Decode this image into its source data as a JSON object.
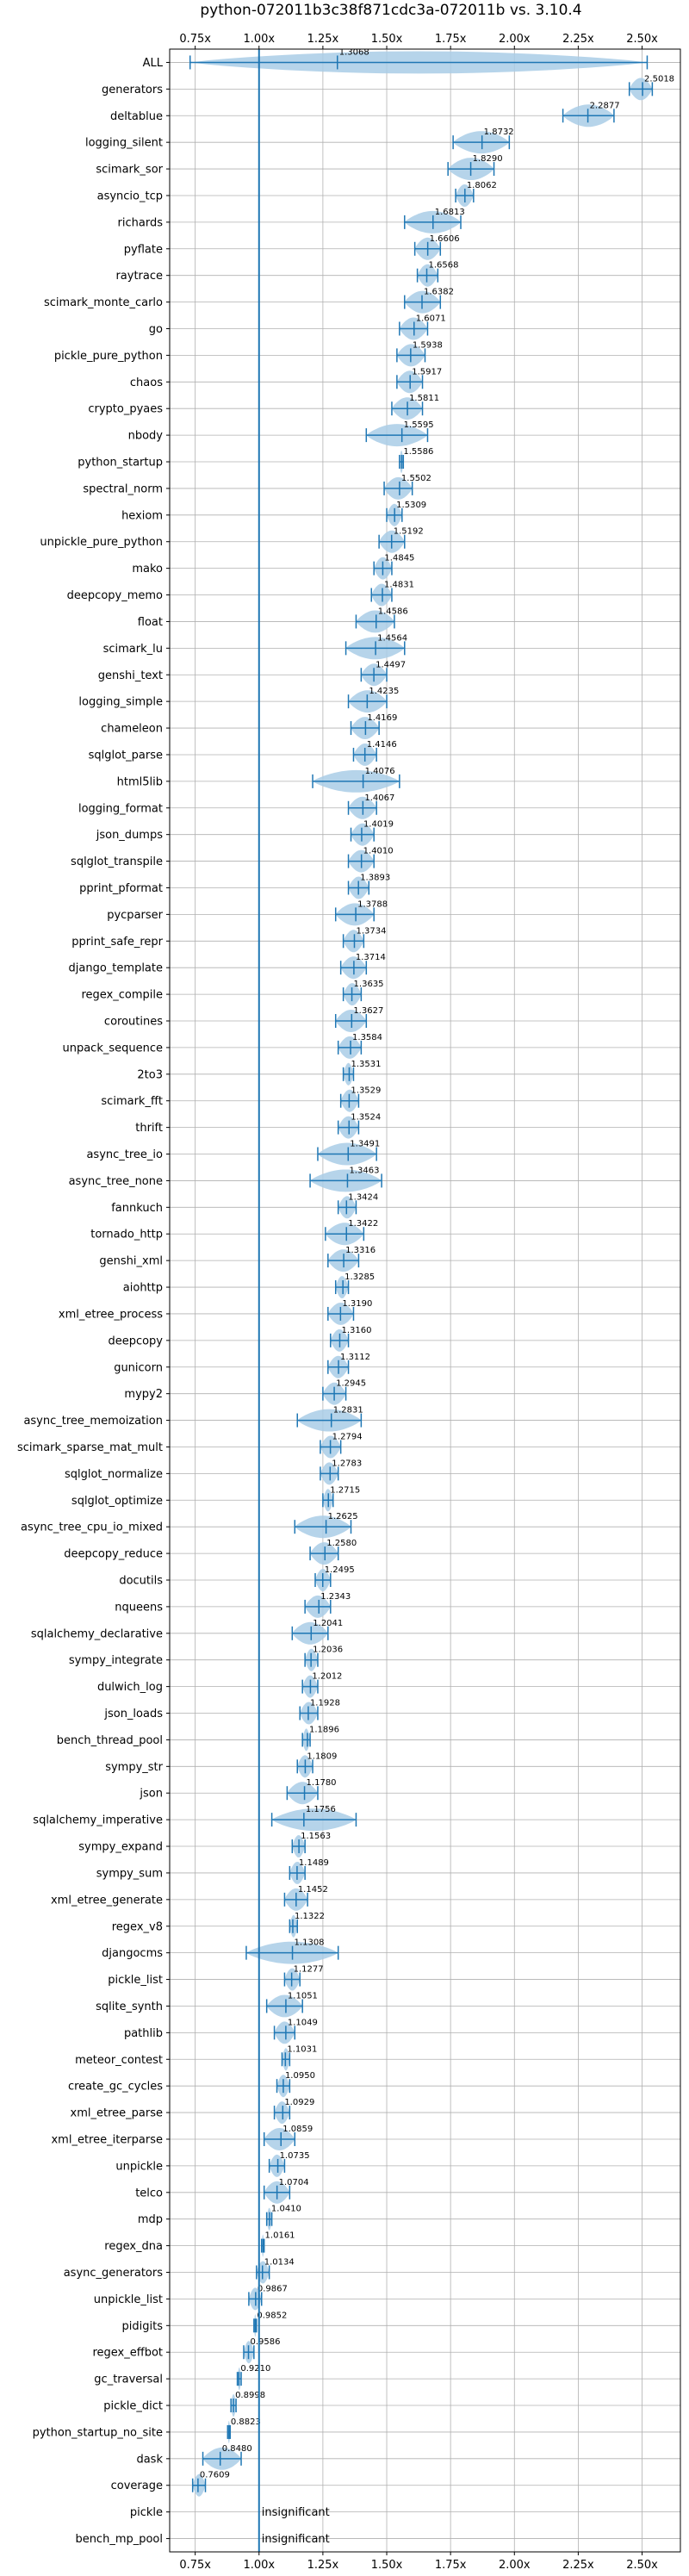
{
  "chart_data": {
    "type": "violin",
    "title": "python-072011b3c38f871cdc3a-072011b vs. 3.10.4",
    "xlabel": "",
    "ylabel": "",
    "xlim": [
      0.65,
      2.65
    ],
    "xticks": [
      0.75,
      1.0,
      1.25,
      1.5,
      1.75,
      2.0,
      2.25,
      2.5
    ],
    "xtick_labels": [
      "0.75x",
      "1.00x",
      "1.25x",
      "1.50x",
      "1.75x",
      "2.00x",
      "2.25x",
      "2.50x"
    ],
    "reference_line": 1.0,
    "grid": true,
    "insignificant_text": "insignificant",
    "colors": {
      "violin": "#a9cce6",
      "line": "#1f77b4",
      "grid": "#b0b0b0"
    },
    "benchmarks": [
      {
        "name": "ALL",
        "mean": 1.3068,
        "label": "1.3068",
        "min": 0.73,
        "max": 2.52
      },
      {
        "name": "generators",
        "mean": 2.5018,
        "label": "2.5018",
        "min": 2.45,
        "max": 2.54
      },
      {
        "name": "deltablue",
        "mean": 2.2877,
        "label": "2.2877",
        "min": 2.19,
        "max": 2.39
      },
      {
        "name": "logging_silent",
        "mean": 1.8732,
        "label": "1.8732",
        "min": 1.76,
        "max": 1.98
      },
      {
        "name": "scimark_sor",
        "mean": 1.829,
        "label": "1.8290",
        "min": 1.74,
        "max": 1.92
      },
      {
        "name": "asyncio_tcp",
        "mean": 1.8062,
        "label": "1.8062",
        "min": 1.77,
        "max": 1.84
      },
      {
        "name": "richards",
        "mean": 1.6813,
        "label": "1.6813",
        "min": 1.57,
        "max": 1.79
      },
      {
        "name": "pyflate",
        "mean": 1.6606,
        "label": "1.6606",
        "min": 1.61,
        "max": 1.71
      },
      {
        "name": "raytrace",
        "mean": 1.6568,
        "label": "1.6568",
        "min": 1.62,
        "max": 1.7
      },
      {
        "name": "scimark_monte_carlo",
        "mean": 1.6382,
        "label": "1.6382",
        "min": 1.57,
        "max": 1.71
      },
      {
        "name": "go",
        "mean": 1.6071,
        "label": "1.6071",
        "min": 1.55,
        "max": 1.66
      },
      {
        "name": "pickle_pure_python",
        "mean": 1.5938,
        "label": "1.5938",
        "min": 1.54,
        "max": 1.65
      },
      {
        "name": "chaos",
        "mean": 1.5917,
        "label": "1.5917",
        "min": 1.54,
        "max": 1.64
      },
      {
        "name": "crypto_pyaes",
        "mean": 1.5811,
        "label": "1.5811",
        "min": 1.52,
        "max": 1.64
      },
      {
        "name": "nbody",
        "mean": 1.5595,
        "label": "1.5595",
        "min": 1.42,
        "max": 1.66
      },
      {
        "name": "python_startup",
        "mean": 1.5586,
        "label": "1.5586",
        "min": 1.55,
        "max": 1.565
      },
      {
        "name": "spectral_norm",
        "mean": 1.5502,
        "label": "1.5502",
        "min": 1.49,
        "max": 1.6
      },
      {
        "name": "hexiom",
        "mean": 1.5309,
        "label": "1.5309",
        "min": 1.5,
        "max": 1.56
      },
      {
        "name": "unpickle_pure_python",
        "mean": 1.5192,
        "label": "1.5192",
        "min": 1.47,
        "max": 1.57
      },
      {
        "name": "mako",
        "mean": 1.4845,
        "label": "1.4845",
        "min": 1.45,
        "max": 1.52
      },
      {
        "name": "deepcopy_memo",
        "mean": 1.4831,
        "label": "1.4831",
        "min": 1.44,
        "max": 1.52
      },
      {
        "name": "float",
        "mean": 1.4586,
        "label": "1.4586",
        "min": 1.38,
        "max": 1.53
      },
      {
        "name": "scimark_lu",
        "mean": 1.4564,
        "label": "1.4564",
        "min": 1.34,
        "max": 1.57
      },
      {
        "name": "genshi_text",
        "mean": 1.4497,
        "label": "1.4497",
        "min": 1.4,
        "max": 1.5
      },
      {
        "name": "logging_simple",
        "mean": 1.4235,
        "label": "1.4235",
        "min": 1.35,
        "max": 1.5
      },
      {
        "name": "chameleon",
        "mean": 1.4169,
        "label": "1.4169",
        "min": 1.36,
        "max": 1.47
      },
      {
        "name": "sqlglot_parse",
        "mean": 1.4146,
        "label": "1.4146",
        "min": 1.37,
        "max": 1.46
      },
      {
        "name": "html5lib",
        "mean": 1.4076,
        "label": "1.4076",
        "min": 1.21,
        "max": 1.55
      },
      {
        "name": "logging_format",
        "mean": 1.4067,
        "label": "1.4067",
        "min": 1.35,
        "max": 1.46
      },
      {
        "name": "json_dumps",
        "mean": 1.4019,
        "label": "1.4019",
        "min": 1.36,
        "max": 1.45
      },
      {
        "name": "sqlglot_transpile",
        "mean": 1.401,
        "label": "1.4010",
        "min": 1.35,
        "max": 1.45
      },
      {
        "name": "pprint_pformat",
        "mean": 1.3893,
        "label": "1.3893",
        "min": 1.35,
        "max": 1.43
      },
      {
        "name": "pycparser",
        "mean": 1.3788,
        "label": "1.3788",
        "min": 1.3,
        "max": 1.45
      },
      {
        "name": "pprint_safe_repr",
        "mean": 1.3734,
        "label": "1.3734",
        "min": 1.33,
        "max": 1.41
      },
      {
        "name": "django_template",
        "mean": 1.3714,
        "label": "1.3714",
        "min": 1.32,
        "max": 1.42
      },
      {
        "name": "regex_compile",
        "mean": 1.3635,
        "label": "1.3635",
        "min": 1.33,
        "max": 1.4
      },
      {
        "name": "coroutines",
        "mean": 1.3627,
        "label": "1.3627",
        "min": 1.3,
        "max": 1.42
      },
      {
        "name": "unpack_sequence",
        "mean": 1.3584,
        "label": "1.3584",
        "min": 1.31,
        "max": 1.4
      },
      {
        "name": "2to3",
        "mean": 1.3531,
        "label": "1.3531",
        "min": 1.33,
        "max": 1.37
      },
      {
        "name": "scimark_fft",
        "mean": 1.3529,
        "label": "1.3529",
        "min": 1.32,
        "max": 1.39
      },
      {
        "name": "thrift",
        "mean": 1.3524,
        "label": "1.3524",
        "min": 1.31,
        "max": 1.39
      },
      {
        "name": "async_tree_io",
        "mean": 1.3491,
        "label": "1.3491",
        "min": 1.23,
        "max": 1.46
      },
      {
        "name": "async_tree_none",
        "mean": 1.3463,
        "label": "1.3463",
        "min": 1.2,
        "max": 1.48
      },
      {
        "name": "fannkuch",
        "mean": 1.3424,
        "label": "1.3424",
        "min": 1.31,
        "max": 1.38
      },
      {
        "name": "tornado_http",
        "mean": 1.3422,
        "label": "1.3422",
        "min": 1.26,
        "max": 1.41
      },
      {
        "name": "genshi_xml",
        "mean": 1.3316,
        "label": "1.3316",
        "min": 1.27,
        "max": 1.39
      },
      {
        "name": "aiohttp",
        "mean": 1.3285,
        "label": "1.3285",
        "min": 1.3,
        "max": 1.35
      },
      {
        "name": "xml_etree_process",
        "mean": 1.319,
        "label": "1.3190",
        "min": 1.27,
        "max": 1.37
      },
      {
        "name": "deepcopy",
        "mean": 1.316,
        "label": "1.3160",
        "min": 1.28,
        "max": 1.35
      },
      {
        "name": "gunicorn",
        "mean": 1.3112,
        "label": "1.3112",
        "min": 1.27,
        "max": 1.35
      },
      {
        "name": "mypy2",
        "mean": 1.2945,
        "label": "1.2945",
        "min": 1.25,
        "max": 1.34
      },
      {
        "name": "async_tree_memoization",
        "mean": 1.2831,
        "label": "1.2831",
        "min": 1.15,
        "max": 1.4
      },
      {
        "name": "scimark_sparse_mat_mult",
        "mean": 1.2794,
        "label": "1.2794",
        "min": 1.24,
        "max": 1.32
      },
      {
        "name": "sqlglot_normalize",
        "mean": 1.2783,
        "label": "1.2783",
        "min": 1.24,
        "max": 1.31
      },
      {
        "name": "sqlglot_optimize",
        "mean": 1.2715,
        "label": "1.2715",
        "min": 1.25,
        "max": 1.29
      },
      {
        "name": "async_tree_cpu_io_mixed",
        "mean": 1.2625,
        "label": "1.2625",
        "min": 1.14,
        "max": 1.36
      },
      {
        "name": "deepcopy_reduce",
        "mean": 1.258,
        "label": "1.2580",
        "min": 1.2,
        "max": 1.31
      },
      {
        "name": "docutils",
        "mean": 1.2495,
        "label": "1.2495",
        "min": 1.22,
        "max": 1.28
      },
      {
        "name": "nqueens",
        "mean": 1.2343,
        "label": "1.2343",
        "min": 1.18,
        "max": 1.28
      },
      {
        "name": "sqlalchemy_declarative",
        "mean": 1.2041,
        "label": "1.2041",
        "min": 1.13,
        "max": 1.27
      },
      {
        "name": "sympy_integrate",
        "mean": 1.2036,
        "label": "1.2036",
        "min": 1.18,
        "max": 1.23
      },
      {
        "name": "dulwich_log",
        "mean": 1.2012,
        "label": "1.2012",
        "min": 1.17,
        "max": 1.23
      },
      {
        "name": "json_loads",
        "mean": 1.1928,
        "label": "1.1928",
        "min": 1.16,
        "max": 1.23
      },
      {
        "name": "bench_thread_pool",
        "mean": 1.1896,
        "label": "1.1896",
        "min": 1.17,
        "max": 1.2
      },
      {
        "name": "sympy_str",
        "mean": 1.1809,
        "label": "1.1809",
        "min": 1.15,
        "max": 1.21
      },
      {
        "name": "json",
        "mean": 1.178,
        "label": "1.1780",
        "min": 1.11,
        "max": 1.23
      },
      {
        "name": "sqlalchemy_imperative",
        "mean": 1.1756,
        "label": "1.1756",
        "min": 1.05,
        "max": 1.38
      },
      {
        "name": "sympy_expand",
        "mean": 1.1563,
        "label": "1.1563",
        "min": 1.13,
        "max": 1.18
      },
      {
        "name": "sympy_sum",
        "mean": 1.1489,
        "label": "1.1489",
        "min": 1.12,
        "max": 1.18
      },
      {
        "name": "xml_etree_generate",
        "mean": 1.1452,
        "label": "1.1452",
        "min": 1.1,
        "max": 1.19
      },
      {
        "name": "regex_v8",
        "mean": 1.1322,
        "label": "1.1322",
        "min": 1.12,
        "max": 1.15
      },
      {
        "name": "djangocms",
        "mean": 1.1308,
        "label": "1.1308",
        "min": 0.95,
        "max": 1.31
      },
      {
        "name": "pickle_list",
        "mean": 1.1277,
        "label": "1.1277",
        "min": 1.1,
        "max": 1.16
      },
      {
        "name": "sqlite_synth",
        "mean": 1.1051,
        "label": "1.1051",
        "min": 1.03,
        "max": 1.17
      },
      {
        "name": "pathlib",
        "mean": 1.1049,
        "label": "1.1049",
        "min": 1.06,
        "max": 1.14
      },
      {
        "name": "meteor_contest",
        "mean": 1.1031,
        "label": "1.1031",
        "min": 1.09,
        "max": 1.12
      },
      {
        "name": "create_gc_cycles",
        "mean": 1.095,
        "label": "1.0950",
        "min": 1.07,
        "max": 1.12
      },
      {
        "name": "xml_etree_parse",
        "mean": 1.0929,
        "label": "1.0929",
        "min": 1.06,
        "max": 1.12
      },
      {
        "name": "xml_etree_iterparse",
        "mean": 1.0859,
        "label": "1.0859",
        "min": 1.02,
        "max": 1.14
      },
      {
        "name": "unpickle",
        "mean": 1.0735,
        "label": "1.0735",
        "min": 1.04,
        "max": 1.1
      },
      {
        "name": "telco",
        "mean": 1.0704,
        "label": "1.0704",
        "min": 1.02,
        "max": 1.12
      },
      {
        "name": "mdp",
        "mean": 1.041,
        "label": "1.0410",
        "min": 1.03,
        "max": 1.05
      },
      {
        "name": "regex_dna",
        "mean": 1.0161,
        "label": "1.0161",
        "min": 1.01,
        "max": 1.02
      },
      {
        "name": "async_generators",
        "mean": 1.0134,
        "label": "1.0134",
        "min": 0.99,
        "max": 1.04
      },
      {
        "name": "unpickle_list",
        "mean": 0.9867,
        "label": "0.9867",
        "min": 0.96,
        "max": 1.01
      },
      {
        "name": "pidigits",
        "mean": 0.9852,
        "label": "0.9852",
        "min": 0.98,
        "max": 0.99
      },
      {
        "name": "regex_effbot",
        "mean": 0.9586,
        "label": "0.9586",
        "min": 0.94,
        "max": 0.98
      },
      {
        "name": "gc_traversal",
        "mean": 0.921,
        "label": "0.9210",
        "min": 0.915,
        "max": 0.93
      },
      {
        "name": "pickle_dict",
        "mean": 0.8998,
        "label": "0.8998",
        "min": 0.89,
        "max": 0.91
      },
      {
        "name": "python_startup_no_site",
        "mean": 0.8823,
        "label": "0.8823",
        "min": 0.877,
        "max": 0.887
      },
      {
        "name": "dask",
        "mean": 0.848,
        "label": "0.8480",
        "min": 0.78,
        "max": 0.93
      },
      {
        "name": "coverage",
        "mean": 0.7609,
        "label": "0.7609",
        "min": 0.74,
        "max": 0.79
      },
      {
        "name": "pickle",
        "mean": null,
        "label": "insignificant"
      },
      {
        "name": "bench_mp_pool",
        "mean": null,
        "label": "insignificant"
      }
    ]
  }
}
